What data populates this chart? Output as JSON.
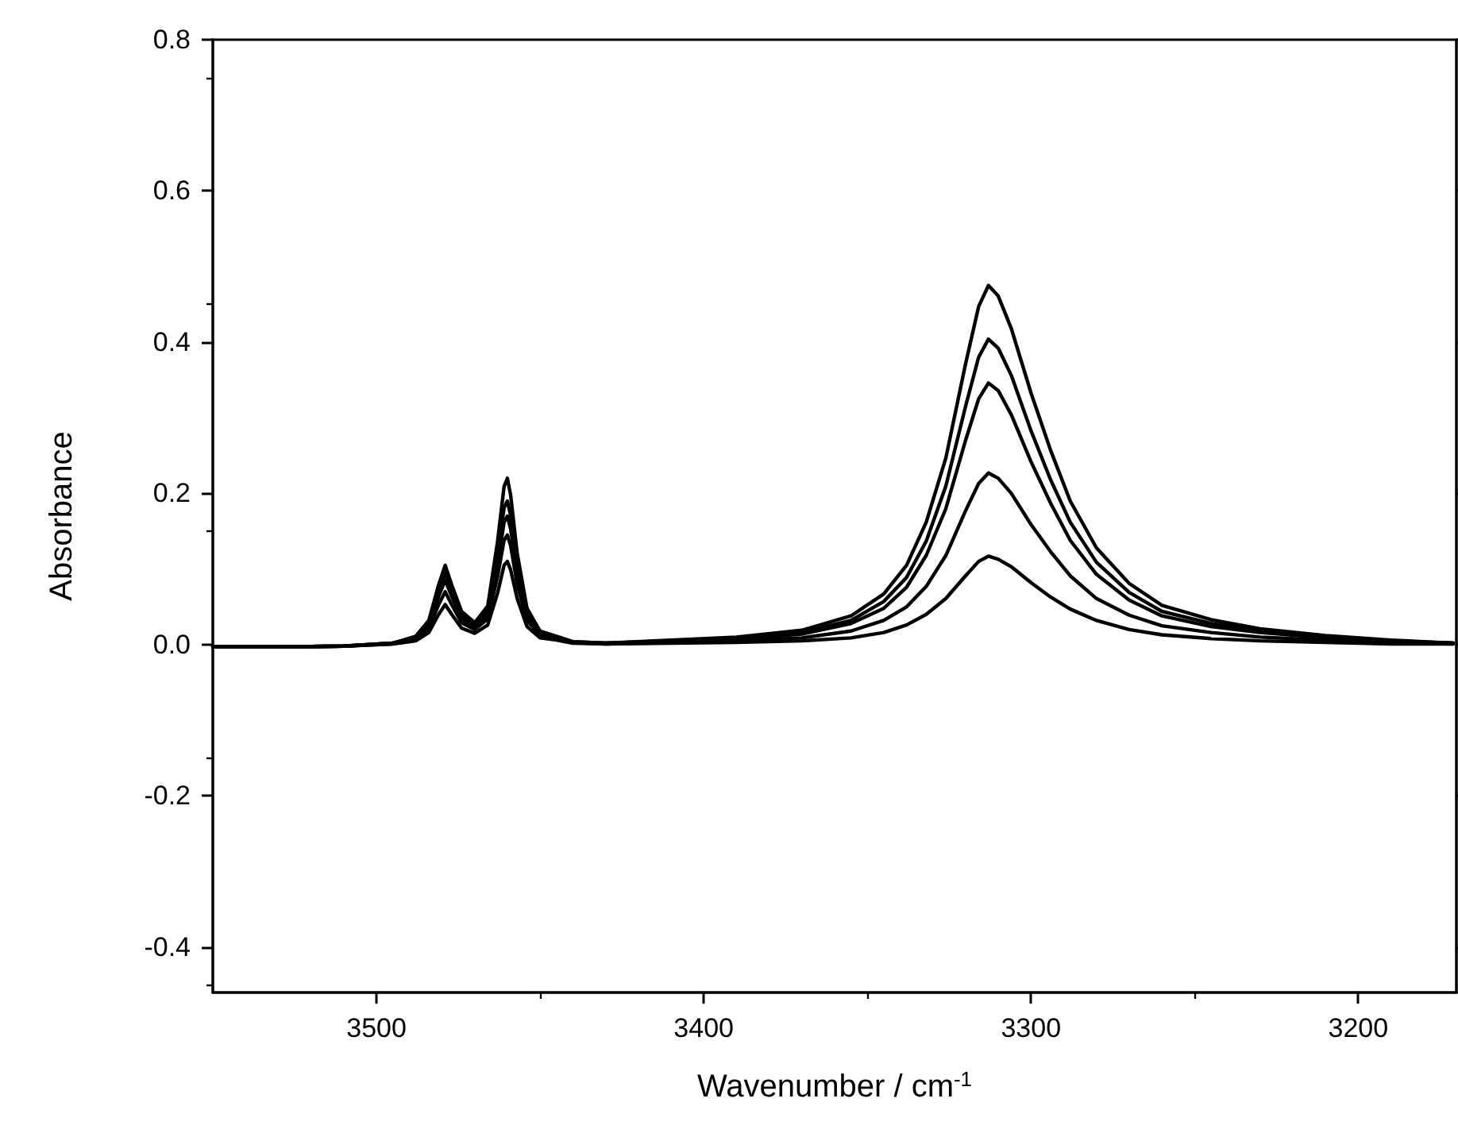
{
  "chart_data": {
    "type": "line",
    "xlabel": "Wavenumber / cm$^{-1}$",
    "ylabel": "Absorbance",
    "x": [
      3550,
      3530,
      3510,
      3495,
      3488,
      3484,
      3481,
      3479,
      3477,
      3474,
      3470,
      3466,
      3463,
      3461,
      3460,
      3459,
      3457,
      3454,
      3450,
      3445,
      3440,
      3430,
      3410,
      3390,
      3370,
      3355,
      3345,
      3338,
      3332,
      3326,
      3320,
      3316,
      3313,
      3310,
      3306,
      3300,
      3294,
      3288,
      3280,
      3270,
      3260,
      3245,
      3230,
      3210,
      3190,
      3171
    ],
    "series": [
      {
        "color": "#000000",
        "values": [
          -0.003,
          -0.003,
          -0.002,
          0.002,
          0.011,
          0.032,
          0.079,
          0.105,
          0.079,
          0.044,
          0.029,
          0.051,
          0.136,
          0.209,
          0.22,
          0.198,
          0.121,
          0.048,
          0.018,
          0.011,
          0.004,
          0.002,
          0.006,
          0.01,
          0.019,
          0.038,
          0.067,
          0.105,
          0.162,
          0.247,
          0.371,
          0.447,
          0.475,
          0.461,
          0.418,
          0.333,
          0.257,
          0.19,
          0.128,
          0.081,
          0.052,
          0.033,
          0.021,
          0.012,
          0.006,
          0.002
        ]
      },
      {
        "color": "#000000",
        "values": [
          -0.003,
          -0.003,
          -0.002,
          0.002,
          0.01,
          0.029,
          0.071,
          0.095,
          0.071,
          0.039,
          0.025,
          0.045,
          0.118,
          0.181,
          0.19,
          0.171,
          0.105,
          0.042,
          0.015,
          0.01,
          0.004,
          0.002,
          0.005,
          0.008,
          0.016,
          0.032,
          0.057,
          0.089,
          0.137,
          0.21,
          0.315,
          0.38,
          0.404,
          0.392,
          0.356,
          0.283,
          0.218,
          0.162,
          0.109,
          0.069,
          0.044,
          0.028,
          0.018,
          0.01,
          0.005,
          0.002
        ]
      },
      {
        "color": "#000000",
        "values": [
          -0.003,
          -0.003,
          -0.002,
          0.002,
          0.009,
          0.026,
          0.064,
          0.085,
          0.064,
          0.035,
          0.023,
          0.04,
          0.105,
          0.162,
          0.17,
          0.153,
          0.094,
          0.037,
          0.014,
          0.009,
          0.003,
          0.002,
          0.004,
          0.007,
          0.014,
          0.028,
          0.048,
          0.076,
          0.118,
          0.18,
          0.27,
          0.325,
          0.346,
          0.336,
          0.304,
          0.242,
          0.187,
          0.138,
          0.093,
          0.059,
          0.038,
          0.024,
          0.016,
          0.009,
          0.004,
          0.002
        ]
      },
      {
        "color": "#000000",
        "values": [
          -0.003,
          -0.003,
          -0.002,
          0.001,
          0.007,
          0.021,
          0.053,
          0.07,
          0.053,
          0.029,
          0.02,
          0.034,
          0.09,
          0.138,
          0.145,
          0.131,
          0.08,
          0.032,
          0.012,
          0.007,
          0.003,
          0.001,
          0.003,
          0.005,
          0.009,
          0.018,
          0.032,
          0.05,
          0.077,
          0.118,
          0.177,
          0.213,
          0.227,
          0.22,
          0.2,
          0.159,
          0.123,
          0.091,
          0.061,
          0.039,
          0.025,
          0.016,
          0.01,
          0.006,
          0.003,
          0.001
        ]
      },
      {
        "color": "#000000",
        "values": [
          -0.003,
          -0.003,
          -0.002,
          0.001,
          0.005,
          0.016,
          0.04,
          0.053,
          0.04,
          0.022,
          0.015,
          0.026,
          0.068,
          0.105,
          0.11,
          0.099,
          0.061,
          0.024,
          0.009,
          0.006,
          0.002,
          0.001,
          0.002,
          0.003,
          0.005,
          0.009,
          0.016,
          0.026,
          0.04,
          0.061,
          0.091,
          0.11,
          0.117,
          0.113,
          0.103,
          0.082,
          0.063,
          0.047,
          0.032,
          0.02,
          0.013,
          0.008,
          0.005,
          0.003,
          0.001,
          0.001
        ]
      }
    ],
    "xlim": [
      3550,
      3170
    ],
    "xticks": [
      3500,
      3400,
      3300,
      3200
    ],
    "ylim": [
      -0.46,
      0.8
    ],
    "yticks": [
      0.8,
      0.6,
      0.4,
      0.2,
      {
        "value": 0,
        "label": "0.0"
      },
      -0.2,
      -0.4
    ],
    "grid": false,
    "marker": "none",
    "line_style": "solid"
  }
}
